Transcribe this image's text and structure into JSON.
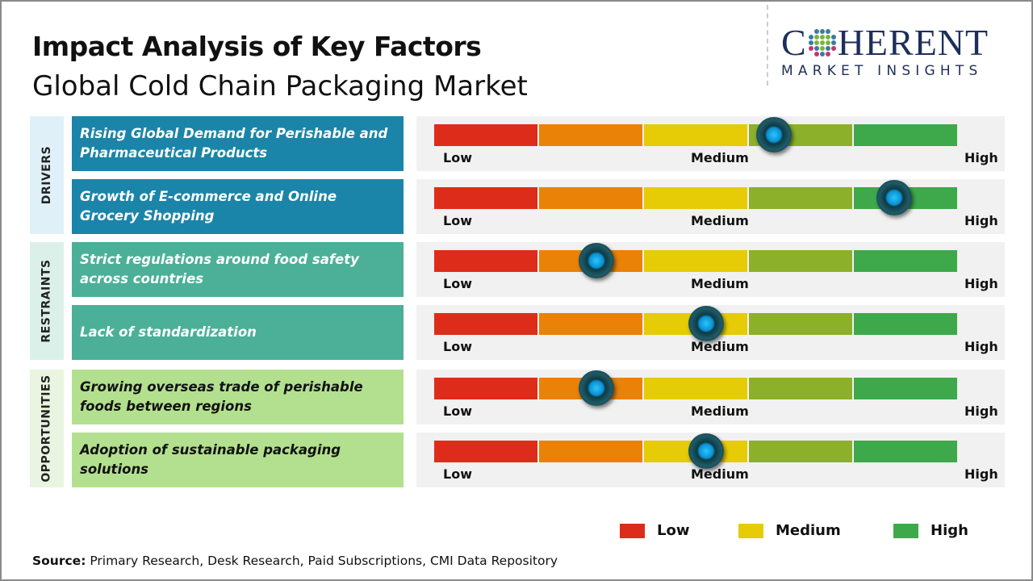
{
  "header": {
    "title": "Impact Analysis of Key Factors",
    "subtitle": "Global Cold Chain Packaging Market"
  },
  "logo": {
    "name": "COHERENT",
    "tagline": "MARKET INSIGHTS"
  },
  "scale": {
    "low": "Low",
    "medium": "Medium",
    "high": "High",
    "segment_colors": [
      "#de2c1b",
      "#ea8208",
      "#e6cb07",
      "#8cb02a",
      "#3ea94a"
    ]
  },
  "categories": [
    {
      "label": "DRIVERS",
      "label_bg": "#dff0f8",
      "box_color": "#1a85a8",
      "text_color": "#ffffff"
    },
    {
      "label": "RESTRAINTS",
      "label_bg": "#dcf0ea",
      "box_color": "#4bb097",
      "text_color": "#ffffff"
    },
    {
      "label": "OPPORTUNITIES",
      "label_bg": "#e9f5e0",
      "box_color": "#b3e08e",
      "text_color": "#111111"
    }
  ],
  "factors": [
    {
      "category": 0,
      "text": "Rising Global Demand for Perishable and Pharmaceutical Products",
      "impact_level": 0.65
    },
    {
      "category": 0,
      "text": "Growth of E-commerce and Online Grocery Shopping",
      "impact_level": 0.88
    },
    {
      "category": 1,
      "text": "Strict regulations around food safety across countries",
      "impact_level": 0.31
    },
    {
      "category": 1,
      "text": "Lack of standardization",
      "impact_level": 0.52
    },
    {
      "category": 2,
      "text": "Growing overseas trade of perishable foods between regions",
      "impact_level": 0.31
    },
    {
      "category": 2,
      "text": "Adoption of sustainable packaging solutions",
      "impact_level": 0.52
    }
  ],
  "legend": [
    {
      "label": "Low",
      "color": "#de2c1b"
    },
    {
      "label": "Medium",
      "color": "#e6cb07"
    },
    {
      "label": "High",
      "color": "#3ea94a"
    }
  ],
  "source": {
    "label": "Source:",
    "text": " Primary Research, Desk Research, Paid Subscriptions, CMI Data Repository"
  }
}
